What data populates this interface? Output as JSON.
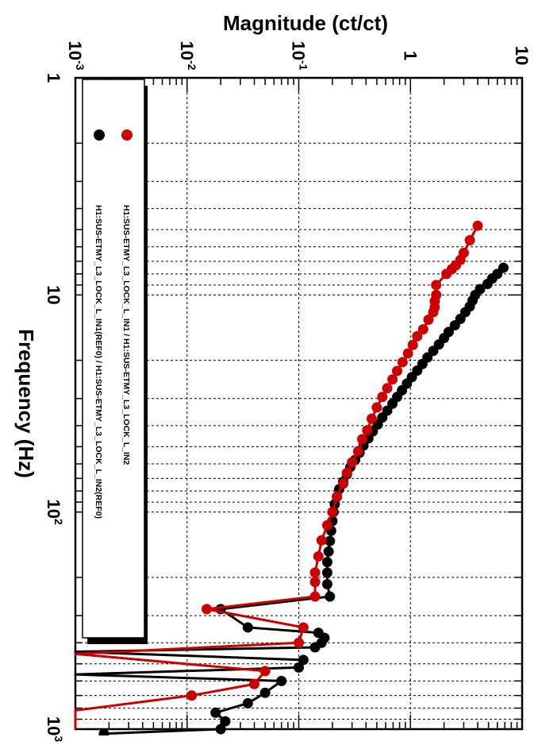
{
  "chart_data": {
    "type": "line",
    "orientation": "rotated-90-clockwise",
    "xlabel": "Frequency (Hz)",
    "ylabel": "Magnitude (ct/ct)",
    "x_scale": "log",
    "y_scale": "log",
    "xlim": [
      1,
      1000
    ],
    "ylim": [
      0.001,
      10
    ],
    "grid": true,
    "legend_position": "top-left",
    "x_ticks": [
      {
        "base": "1",
        "exp": ""
      },
      {
        "base": "10",
        "exp": ""
      },
      {
        "base": "10",
        "exp": "2"
      },
      {
        "base": "10",
        "exp": "3"
      }
    ],
    "y_ticks": [
      {
        "base": "10",
        "exp": "-3"
      },
      {
        "base": "10",
        "exp": "-2"
      },
      {
        "base": "10",
        "exp": "-1"
      },
      {
        "base": "1",
        "exp": ""
      },
      {
        "base": "10",
        "exp": ""
      }
    ],
    "series": [
      {
        "name": "H1:SUS-ETMY_L3_LOCK_L_IN1 / H1:SUS-ETMY_L3_LOCK_L_IN2",
        "color": "#cc0000",
        "x": [
          4.8,
          5.6,
          6.4,
          6.9,
          7.3,
          7.6,
          8.0,
          9.0,
          10.0,
          10.7,
          11.4,
          12.0,
          13.0,
          14.4,
          15.5,
          17.0,
          18.6,
          20.4,
          22.4,
          24.5,
          26.9,
          29.5,
          33.0,
          37.2,
          42.0,
          46.2,
          52.5,
          59.0,
          66.0,
          74.0,
          85.0,
          100.0,
          115.0,
          135.0,
          160.0,
          190.0,
          210.0,
          245.0,
          280.0,
          340.0,
          400.0,
          450.0,
          540.0,
          620.0,
          700.0,
          820.0,
          1000.0
        ],
        "y": [
          4.0,
          3.4,
          3.0,
          2.8,
          2.55,
          2.35,
          2.1,
          1.7,
          1.7,
          1.65,
          1.65,
          1.6,
          1.45,
          1.3,
          1.15,
          1.05,
          0.95,
          0.85,
          0.76,
          0.69,
          0.62,
          0.56,
          0.5,
          0.45,
          0.41,
          0.37,
          0.34,
          0.3,
          0.27,
          0.25,
          0.22,
          0.2,
          0.18,
          0.16,
          0.15,
          0.14,
          0.14,
          0.14,
          0.015,
          0.11,
          0.1,
          0.001,
          0.05,
          0.04,
          0.011,
          0.001,
          0.001
        ]
      },
      {
        "name": "H1:SUS-ETMY_L3_LOCK_L_IN1(REF0) / H1:SUS-ETMY_L3_LOCK_L_IN2(REF0)",
        "color": "#000000",
        "x": [
          7.5,
          8.0,
          8.4,
          8.9,
          9.4,
          10.0,
          10.6,
          11.3,
          12.0,
          12.9,
          13.8,
          14.8,
          15.8,
          16.9,
          18.1,
          19.4,
          20.8,
          22.3,
          23.9,
          25.6,
          27.5,
          29.5,
          31.7,
          34.1,
          36.7,
          39.5,
          42.5,
          45.8,
          49.4,
          53.3,
          57.5,
          62.0,
          67.0,
          72.5,
          78.5,
          85.0,
          92.0,
          100.0,
          110.0,
          122.0,
          136.0,
          152.0,
          170.0,
          190.0,
          215.0,
          245.0,
          280.0,
          340.0,
          360.0,
          380.0,
          400.0,
          420.0,
          440.0,
          480.0,
          520.0,
          560.0,
          600.0,
          680.0,
          760.0,
          840.0,
          920.0,
          1000.0,
          1050.0
        ],
        "y": [
          6.8,
          6.0,
          5.4,
          4.9,
          4.2,
          3.8,
          3.6,
          3.4,
          3.1,
          2.8,
          2.5,
          2.2,
          2.0,
          1.8,
          1.6,
          1.42,
          1.28,
          1.15,
          1.03,
          0.93,
          0.84,
          0.76,
          0.69,
          0.62,
          0.56,
          0.51,
          0.46,
          0.42,
          0.38,
          0.35,
          0.32,
          0.29,
          0.27,
          0.25,
          0.23,
          0.22,
          0.21,
          0.205,
          0.2,
          0.195,
          0.19,
          0.185,
          0.18,
          0.18,
          0.18,
          0.19,
          0.02,
          0.035,
          0.15,
          0.17,
          0.16,
          0.14,
          0.001,
          0.11,
          0.1,
          0.001,
          0.07,
          0.05,
          0.035,
          0.018,
          0.022,
          0.02,
          0.0018
        ]
      }
    ]
  }
}
